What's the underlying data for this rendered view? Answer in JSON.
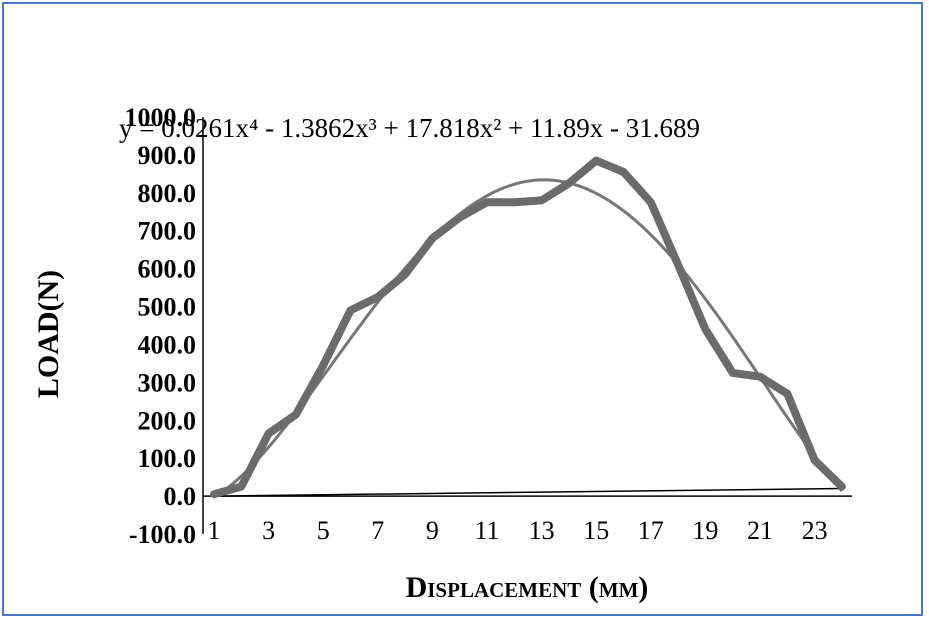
{
  "chart_data": {
    "type": "line",
    "title": "",
    "xlabel": "Displacement (mm)",
    "ylabel": "LOAD(N)",
    "x": [
      1,
      2,
      3,
      4,
      5,
      6,
      7,
      8,
      9,
      10,
      11,
      12,
      13,
      14,
      15,
      16,
      17,
      18,
      19,
      20,
      21,
      22,
      23,
      24
    ],
    "xticks": [
      "1",
      "3",
      "5",
      "7",
      "9",
      "11",
      "13",
      "15",
      "17",
      "19",
      "21",
      "23"
    ],
    "yticks": [
      "-100.0",
      "0.0",
      "100.0",
      "200.0",
      "300.0",
      "400.0",
      "500.0",
      "600.0",
      "700.0",
      "800.0",
      "900.0",
      "1000.0"
    ],
    "ylim": [
      -100,
      1000
    ],
    "grid": false,
    "series": [
      {
        "values": [
          5,
          25,
          165,
          215,
          345,
          490,
          525,
          585,
          680,
          735,
          775,
          775,
          780,
          825,
          885,
          855,
          775,
          610,
          440,
          325,
          315,
          270,
          95,
          25
        ],
        "color": "#6b6b6b"
      }
    ],
    "trendline": {
      "type": "polynomial",
      "order": 4,
      "coefficients": [
        0.0261,
        -1.3862,
        17.818,
        11.89,
        -31.689
      ],
      "equation": "y = 0.0261x⁴ - 1.3862x³ + 17.818x² + 11.89x - 31.689",
      "color": "#777777"
    },
    "baseline": {
      "from": 0,
      "to": 20
    }
  }
}
